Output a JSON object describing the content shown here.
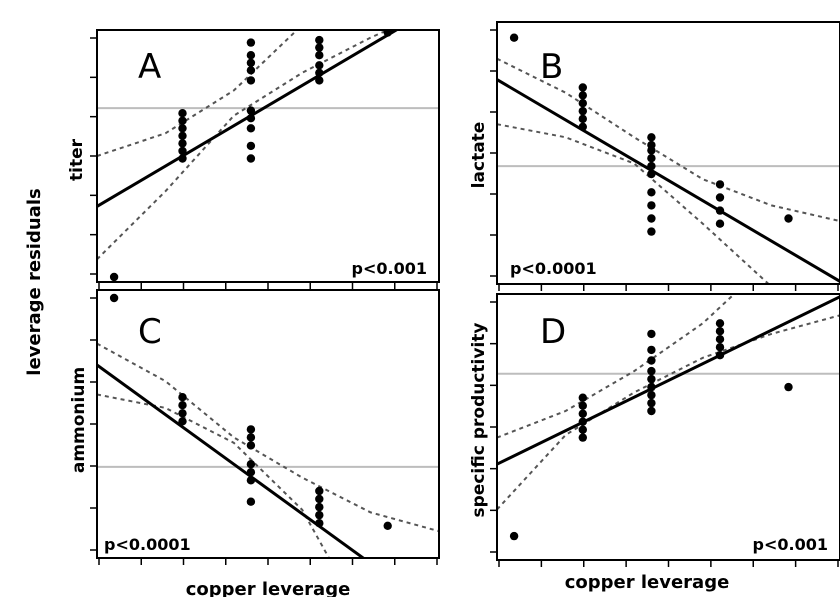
{
  "figure": {
    "shared_ylabel": "leverage residuals",
    "xlabel_left": "copper leverage",
    "xlabel_right": "copper leverage"
  },
  "chart_data": [
    {
      "panel": "A",
      "type": "scatter",
      "ylabel": "titer",
      "pvalue": "p<0.001",
      "xlim": [
        0,
        10
      ],
      "ylim": [
        0,
        10
      ],
      "points": [
        [
          0.5,
          0.2
        ],
        [
          2.5,
          4.9
        ],
        [
          2.5,
          5.2
        ],
        [
          2.5,
          5.5
        ],
        [
          2.5,
          5.8
        ],
        [
          2.5,
          6.1
        ],
        [
          2.5,
          6.4
        ],
        [
          2.5,
          6.7
        ],
        [
          4.5,
          4.9
        ],
        [
          4.5,
          5.4
        ],
        [
          4.5,
          6.1
        ],
        [
          4.5,
          6.5
        ],
        [
          4.5,
          6.8
        ],
        [
          4.5,
          8.0
        ],
        [
          4.5,
          8.4
        ],
        [
          4.5,
          8.7
        ],
        [
          4.5,
          9.0
        ],
        [
          4.5,
          9.5
        ],
        [
          6.5,
          8.0
        ],
        [
          6.5,
          8.3
        ],
        [
          6.5,
          8.6
        ],
        [
          6.5,
          9.0
        ],
        [
          6.5,
          9.3
        ],
        [
          6.5,
          9.6
        ],
        [
          8.5,
          9.9
        ]
      ],
      "fit": [
        [
          0,
          3.0
        ],
        [
          10,
          11.0
        ]
      ],
      "ci_upper": [
        [
          0,
          5.0
        ],
        [
          2,
          5.9
        ],
        [
          4,
          7.6
        ],
        [
          6,
          10.2
        ],
        [
          7,
          11.7
        ]
      ],
      "ci_lower": [
        [
          0,
          0.9
        ],
        [
          2,
          3.6
        ],
        [
          4,
          6.6
        ],
        [
          6,
          8.3
        ],
        [
          8,
          9.7
        ],
        [
          10,
          10.9
        ]
      ],
      "ref_y": 6.9
    },
    {
      "panel": "B",
      "type": "scatter",
      "ylabel": "lactate",
      "pvalue": "p<0.0001",
      "xlim": [
        0,
        10
      ],
      "ylim": [
        0,
        10
      ],
      "points": [
        [
          0.5,
          9.4
        ],
        [
          2.5,
          6.0
        ],
        [
          2.5,
          6.3
        ],
        [
          2.5,
          6.6
        ],
        [
          2.5,
          6.9
        ],
        [
          2.5,
          7.2
        ],
        [
          2.5,
          7.5
        ],
        [
          4.5,
          2.0
        ],
        [
          4.5,
          2.5
        ],
        [
          4.5,
          3.0
        ],
        [
          4.5,
          3.5
        ],
        [
          4.5,
          4.2
        ],
        [
          4.5,
          4.5
        ],
        [
          4.5,
          4.8
        ],
        [
          4.5,
          5.1
        ],
        [
          4.5,
          5.3
        ],
        [
          4.5,
          5.6
        ],
        [
          6.5,
          2.3
        ],
        [
          6.5,
          2.8
        ],
        [
          6.5,
          3.3
        ],
        [
          6.5,
          3.8
        ],
        [
          8.5,
          2.5
        ]
      ],
      "fit": [
        [
          0,
          7.8
        ],
        [
          10,
          0.1
        ]
      ],
      "ci_upper": [
        [
          0,
          8.6
        ],
        [
          2,
          7.3
        ],
        [
          4,
          5.6
        ],
        [
          6,
          4.0
        ],
        [
          8,
          3.0
        ],
        [
          10,
          2.4
        ]
      ],
      "ci_lower": [
        [
          0,
          6.1
        ],
        [
          2,
          5.6
        ],
        [
          4,
          4.6
        ],
        [
          6,
          2.3
        ],
        [
          8,
          -0.1
        ]
      ],
      "ref_y": 4.5
    },
    {
      "panel": "C",
      "type": "scatter",
      "ylabel": "ammonium",
      "pvalue": "p<0.0001",
      "xlim": [
        0,
        10
      ],
      "ylim": [
        0,
        10
      ],
      "points": [
        [
          0.5,
          9.7
        ],
        [
          2.5,
          5.1
        ],
        [
          2.5,
          5.4
        ],
        [
          2.5,
          5.7
        ],
        [
          2.5,
          6.0
        ],
        [
          4.5,
          2.1
        ],
        [
          4.5,
          2.9
        ],
        [
          4.5,
          3.2
        ],
        [
          4.5,
          3.5
        ],
        [
          4.5,
          4.2
        ],
        [
          4.5,
          4.5
        ],
        [
          4.5,
          4.8
        ],
        [
          6.5,
          1.3
        ],
        [
          6.5,
          1.6
        ],
        [
          6.5,
          1.9
        ],
        [
          6.5,
          2.2
        ],
        [
          6.5,
          2.5
        ],
        [
          8.5,
          1.2
        ]
      ],
      "fit": [
        [
          0,
          7.2
        ],
        [
          8,
          -0.2
        ]
      ],
      "ci_upper": [
        [
          0,
          8.0
        ],
        [
          2,
          6.6
        ],
        [
          4,
          4.5
        ],
        [
          6,
          3.0
        ],
        [
          8,
          1.7
        ],
        [
          10,
          1.0
        ]
      ],
      "ci_lower": [
        [
          0,
          6.1
        ],
        [
          2,
          5.6
        ],
        [
          4,
          4.3
        ],
        [
          6,
          1.8
        ],
        [
          7,
          -0.5
        ]
      ],
      "ref_y": 3.4
    },
    {
      "panel": "D",
      "type": "scatter",
      "ylabel": "specific productivity",
      "pvalue": "p<0.001",
      "xlim": [
        0,
        10
      ],
      "ylim": [
        0,
        10
      ],
      "points": [
        [
          0.5,
          0.9
        ],
        [
          2.5,
          4.6
        ],
        [
          2.5,
          4.9
        ],
        [
          2.5,
          5.2
        ],
        [
          2.5,
          5.5
        ],
        [
          2.5,
          5.8
        ],
        [
          2.5,
          6.1
        ],
        [
          4.5,
          5.6
        ],
        [
          4.5,
          5.9
        ],
        [
          4.5,
          6.2
        ],
        [
          4.5,
          6.5
        ],
        [
          4.5,
          6.8
        ],
        [
          4.5,
          7.1
        ],
        [
          4.5,
          7.5
        ],
        [
          4.5,
          7.9
        ],
        [
          4.5,
          8.5
        ],
        [
          6.5,
          7.7
        ],
        [
          6.5,
          8.0
        ],
        [
          6.5,
          8.3
        ],
        [
          6.5,
          8.6
        ],
        [
          6.5,
          8.9
        ],
        [
          8.5,
          6.5
        ]
      ],
      "fit": [
        [
          0,
          3.6
        ],
        [
          10,
          9.9
        ]
      ],
      "ci_upper": [
        [
          0,
          4.6
        ],
        [
          2,
          5.6
        ],
        [
          4,
          7.1
        ],
        [
          6,
          8.9
        ],
        [
          7,
          10.1
        ]
      ],
      "ci_lower": [
        [
          0,
          1.9
        ],
        [
          2,
          4.7
        ],
        [
          4,
          6.3
        ],
        [
          6,
          7.6
        ],
        [
          8,
          8.5
        ],
        [
          10,
          9.2
        ]
      ],
      "ref_y": 7.0
    }
  ]
}
